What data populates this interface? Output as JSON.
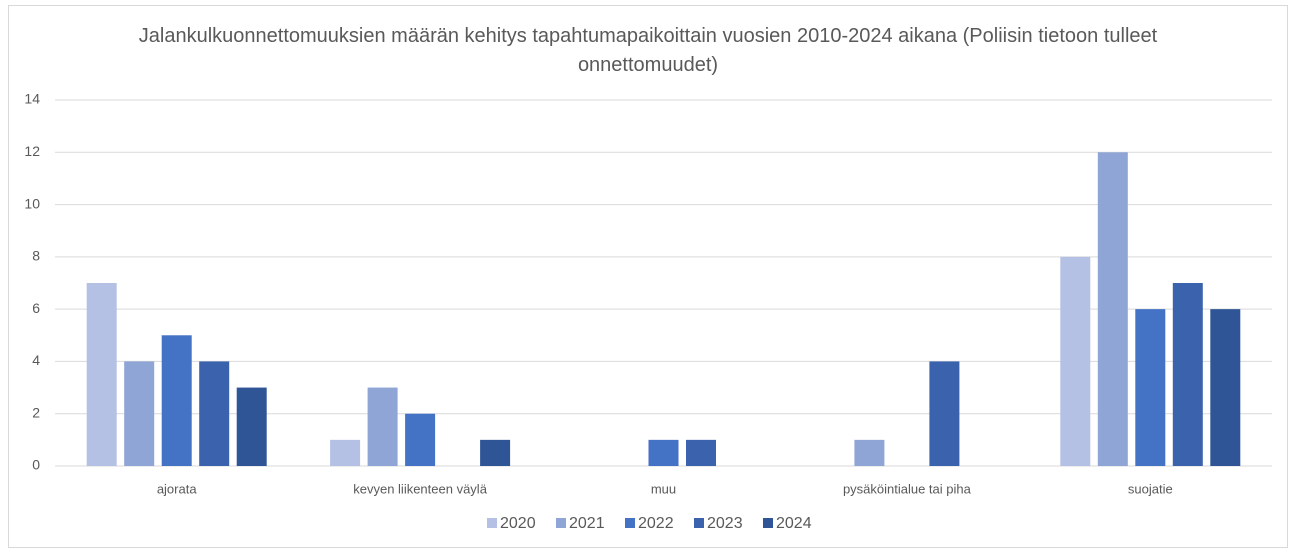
{
  "chart_data": {
    "type": "bar",
    "title": "Jalankulkuonnettomuuksien määrän kehitys tapahtumapaikoittain vuosien 2010-2024 aikana (Poliisin tietoon tulleet onnettomuudet)",
    "categories": [
      "ajorata",
      "kevyen liikenteen väylä",
      "muu",
      "pysäköintialue tai piha",
      "suojatie"
    ],
    "series": [
      {
        "name": "2020",
        "color": "#b4c1e4",
        "values": [
          7,
          1,
          null,
          null,
          8
        ]
      },
      {
        "name": "2021",
        "color": "#8fa5d6",
        "values": [
          4,
          3,
          null,
          1,
          12
        ]
      },
      {
        "name": "2022",
        "color": "#4472c4",
        "values": [
          5,
          2,
          1,
          null,
          6
        ]
      },
      {
        "name": "2023",
        "color": "#3b63ad",
        "values": [
          4,
          null,
          1,
          4,
          7
        ]
      },
      {
        "name": "2024",
        "color": "#2f5597",
        "values": [
          3,
          1,
          null,
          null,
          6
        ]
      }
    ],
    "ylim": [
      0,
      14
    ],
    "yticks": [
      0,
      2,
      4,
      6,
      8,
      10,
      12,
      14
    ],
    "grid": true,
    "legend": "bottom"
  }
}
